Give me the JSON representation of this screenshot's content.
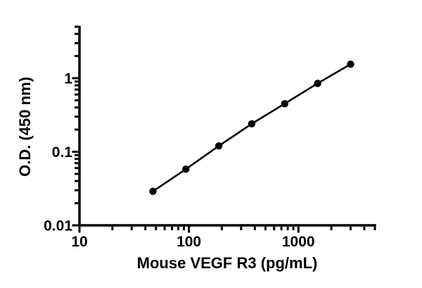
{
  "chart_data": {
    "type": "line",
    "title": "",
    "xlabel": "Mouse VEGF R3 (pg/mL)",
    "ylabel": "O.D. (450 nm)",
    "x_scale": "log10",
    "y_scale": "log10",
    "xlim": [
      10,
      5000
    ],
    "ylim": [
      0.01,
      5
    ],
    "x_major_ticks": [
      10,
      100,
      1000
    ],
    "x_tick_labels": [
      "10",
      "100",
      "1000"
    ],
    "y_major_ticks": [
      0.01,
      0.1,
      1
    ],
    "y_tick_labels": [
      "0.01",
      "0.1",
      "1"
    ],
    "grid": false,
    "legend": "none",
    "colors": {
      "background": "#ffffff",
      "axis": "#000000",
      "series": "#000000"
    },
    "series": [
      {
        "marker": "filled-circle",
        "line_style": "solid",
        "points": [
          {
            "x": 46.9,
            "y": 0.029
          },
          {
            "x": 93.8,
            "y": 0.058
          },
          {
            "x": 187.5,
            "y": 0.12
          },
          {
            "x": 375,
            "y": 0.24
          },
          {
            "x": 750,
            "y": 0.45
          },
          {
            "x": 1500,
            "y": 0.85
          },
          {
            "x": 3000,
            "y": 1.55
          }
        ]
      }
    ]
  }
}
